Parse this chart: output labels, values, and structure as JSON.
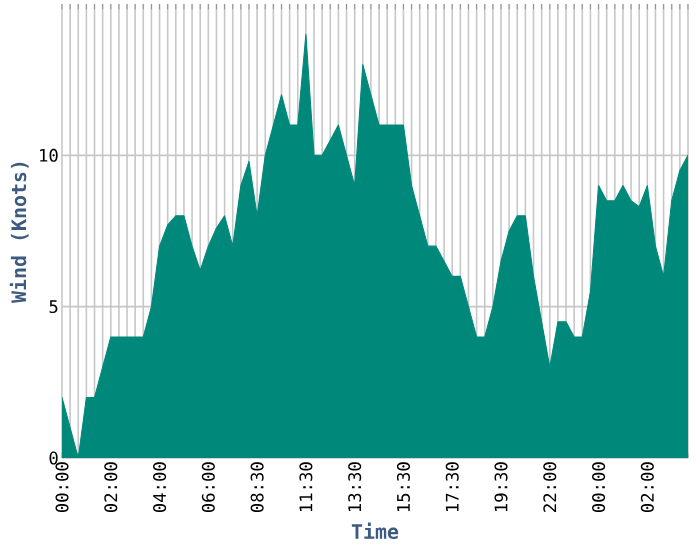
{
  "chart_data": {
    "type": "area",
    "xlabel": "Time",
    "ylabel": "Wind (Knots)",
    "color": "#00897b",
    "categories": [
      "00:00",
      null,
      null,
      null,
      null,
      null,
      "02:00",
      null,
      null,
      null,
      null,
      null,
      "04:00",
      null,
      null,
      null,
      null,
      null,
      "06:00",
      null,
      null,
      null,
      null,
      null,
      "08:30",
      null,
      null,
      null,
      null,
      null,
      "11:30",
      null,
      null,
      null,
      null,
      null,
      "13:30",
      null,
      null,
      null,
      null,
      null,
      "15:30",
      null,
      null,
      null,
      null,
      null,
      "17:30",
      null,
      null,
      null,
      null,
      null,
      "19:30",
      null,
      null,
      null,
      null,
      null,
      "22:00",
      null,
      null,
      null,
      null,
      null,
      "00:00",
      null,
      null,
      null,
      null,
      null,
      "02:00",
      null,
      null,
      null,
      null,
      null
    ],
    "values": [
      2,
      1,
      0,
      2,
      2,
      3,
      4,
      4,
      4,
      4,
      4,
      5,
      7,
      7.7,
      8,
      8,
      7,
      6.2,
      7,
      7.6,
      8,
      7,
      9,
      9.8,
      8,
      10,
      11,
      12,
      11,
      11,
      14,
      10,
      10,
      10.5,
      11,
      10,
      9,
      13,
      12,
      11,
      11,
      11,
      11,
      9,
      8,
      7,
      7,
      6.5,
      6,
      6,
      5,
      4,
      4,
      5,
      6.5,
      7.5,
      8,
      8,
      6,
      4.5,
      3,
      4.5,
      4.5,
      4,
      4,
      5.5,
      9,
      8.5,
      8.5,
      9,
      8.5,
      8.3,
      9,
      7,
      6,
      8.5,
      9.5,
      10
    ],
    "ylim": [
      0,
      15
    ],
    "yticks": [
      0,
      5,
      10
    ],
    "grid": true
  }
}
